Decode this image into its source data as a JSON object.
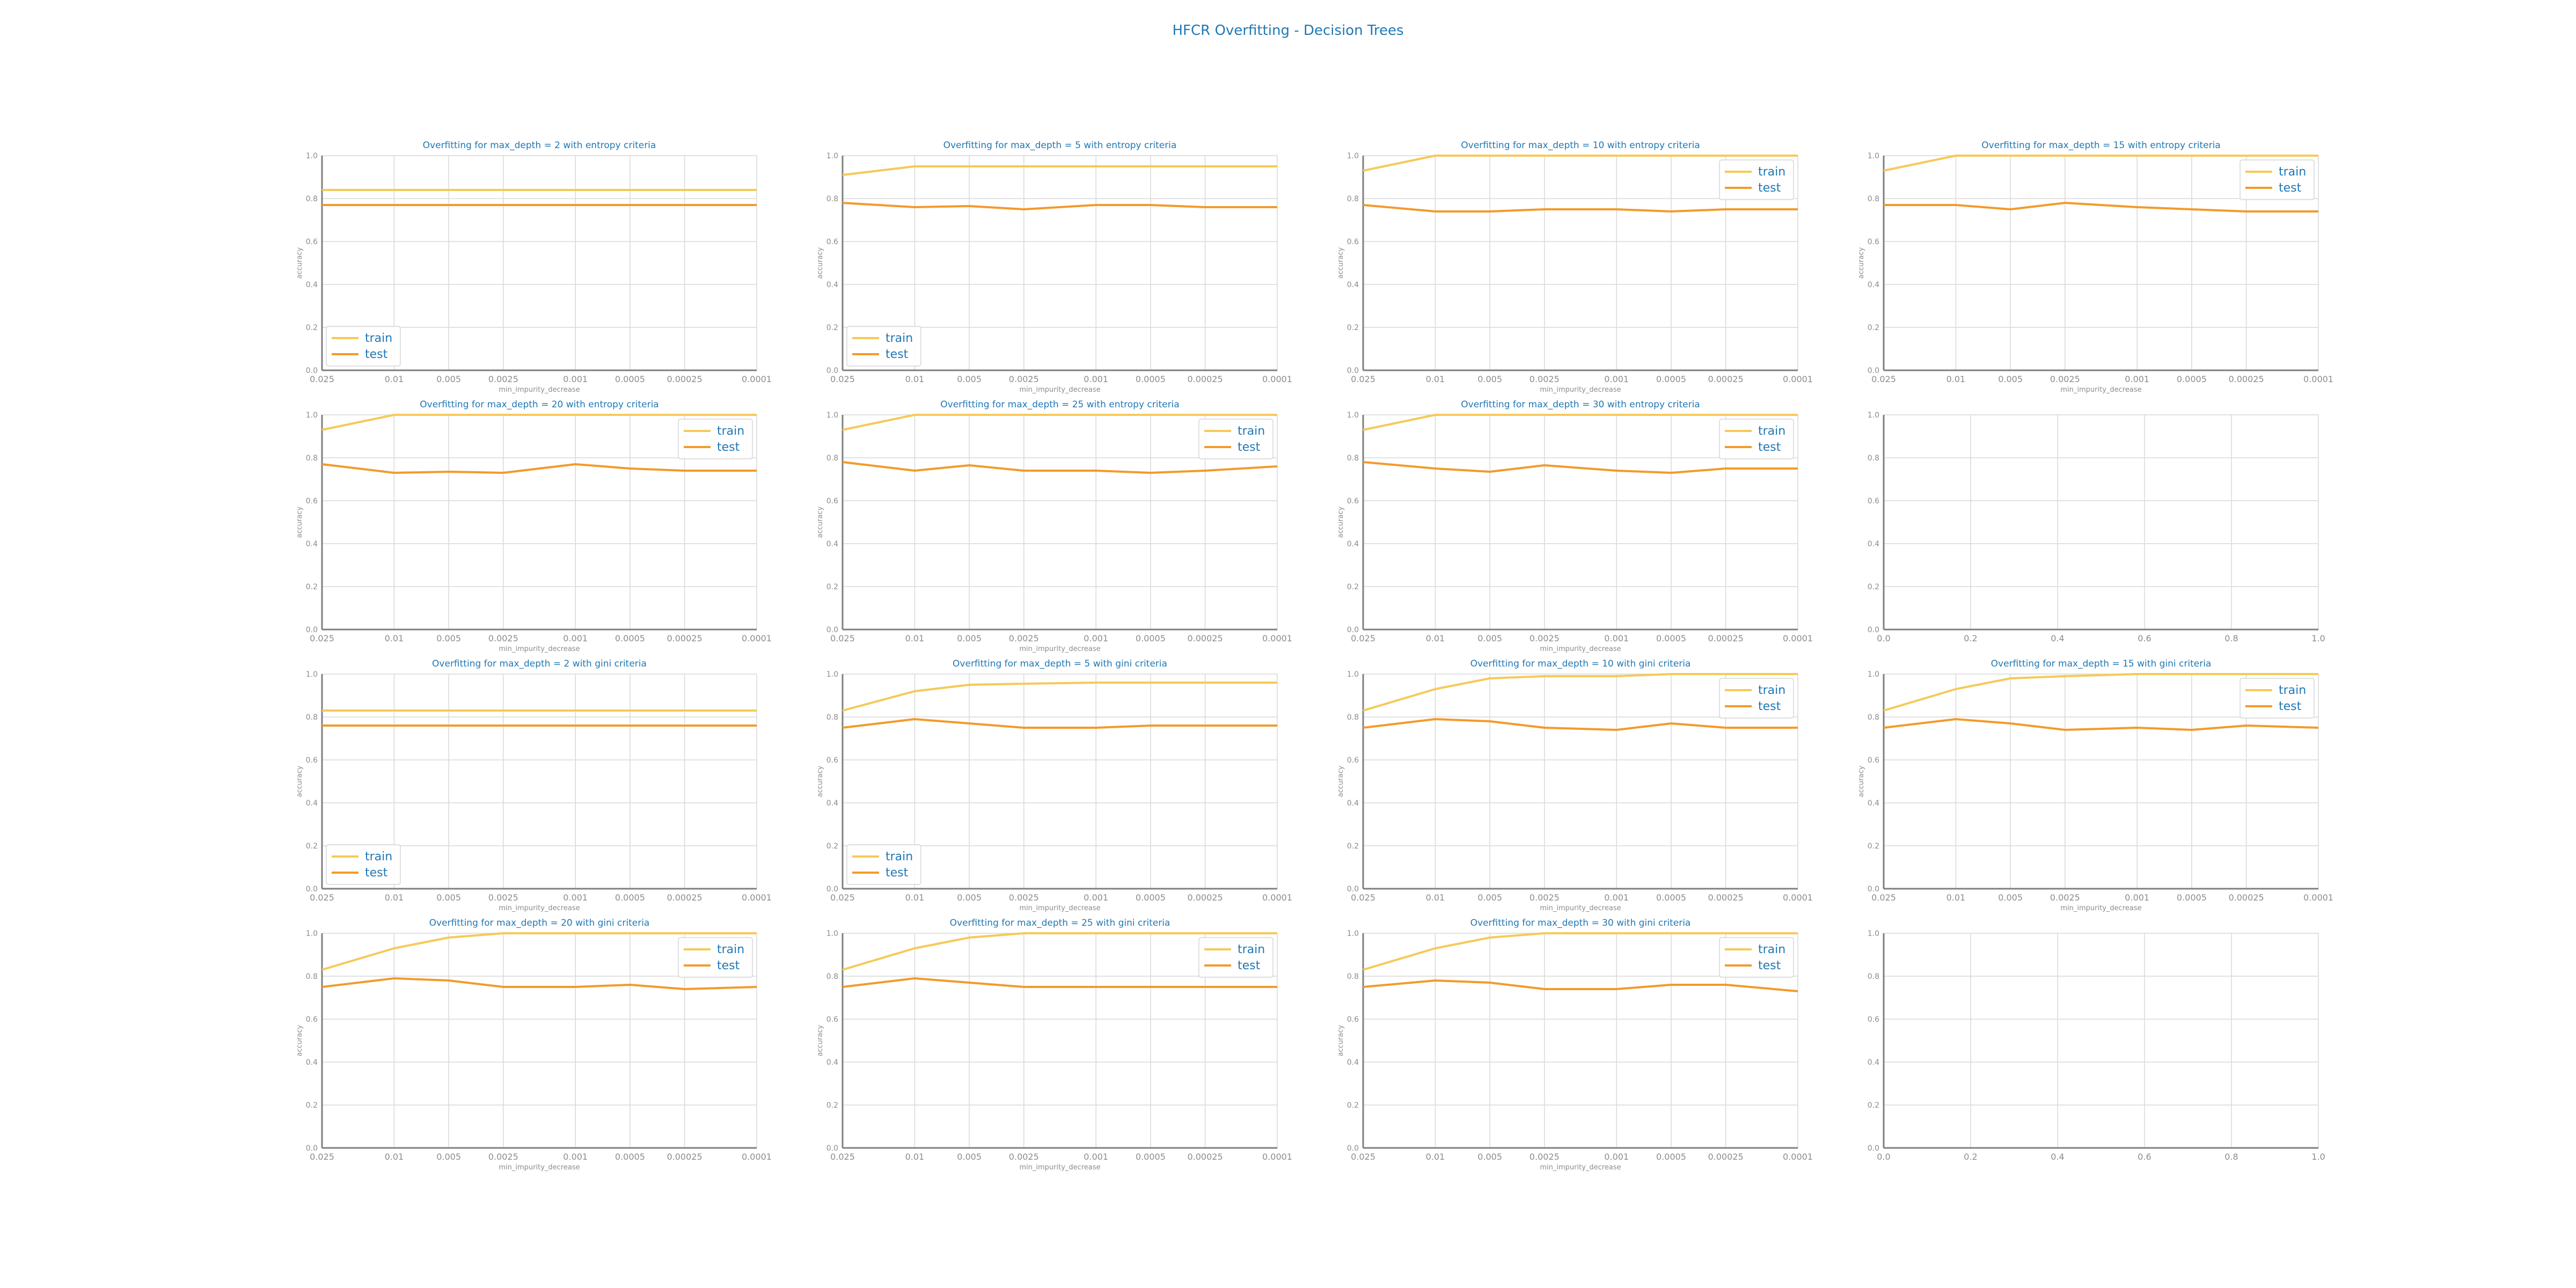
{
  "figure": {
    "title": "HFCR Overfitting - Decision Trees",
    "colors": {
      "train": "#f6c958",
      "test": "#f39a2b",
      "title": "#2078b4",
      "axis_text": "#8c8c8c",
      "grid": "#d9d9d9",
      "spine": "#7f7f7f"
    }
  },
  "chart_data": [
    {
      "type": "line",
      "title": "Overfitting for max_depth = 2 with entropy criteria",
      "xlabel": "min_impurity_decrease",
      "ylabel": "accuracy",
      "x": [
        0.025,
        0.01,
        0.005,
        0.0025,
        0.001,
        0.0005,
        0.00025,
        0.0001
      ],
      "ylim": [
        0,
        1
      ],
      "yticks": [
        "0.0",
        "0.2",
        "0.4",
        "0.6",
        "0.8",
        "1.0"
      ],
      "legend": "lower-left",
      "series": [
        {
          "name": "train",
          "values": [
            0.84,
            0.84,
            0.84,
            0.84,
            0.84,
            0.84,
            0.84,
            0.84
          ]
        },
        {
          "name": "test",
          "values": [
            0.77,
            0.77,
            0.77,
            0.77,
            0.77,
            0.77,
            0.77,
            0.77
          ]
        }
      ]
    },
    {
      "type": "line",
      "title": "Overfitting for max_depth = 5 with entropy criteria",
      "xlabel": "min_impurity_decrease",
      "ylabel": "accuracy",
      "x": [
        0.025,
        0.01,
        0.005,
        0.0025,
        0.001,
        0.0005,
        0.00025,
        0.0001
      ],
      "ylim": [
        0,
        1
      ],
      "yticks": [
        "0.0",
        "0.2",
        "0.4",
        "0.6",
        "0.8",
        "1.0"
      ],
      "legend": "lower-left",
      "series": [
        {
          "name": "train",
          "values": [
            0.91,
            0.95,
            0.95,
            0.95,
            0.95,
            0.95,
            0.95,
            0.95
          ]
        },
        {
          "name": "test",
          "values": [
            0.78,
            0.76,
            0.765,
            0.75,
            0.77,
            0.77,
            0.76,
            0.76
          ]
        }
      ]
    },
    {
      "type": "line",
      "title": "Overfitting for max_depth = 10 with entropy criteria",
      "xlabel": "min_impurity_decrease",
      "ylabel": "accuracy",
      "x": [
        0.025,
        0.01,
        0.005,
        0.0025,
        0.001,
        0.0005,
        0.00025,
        0.0001
      ],
      "ylim": [
        0,
        1
      ],
      "yticks": [
        "0.0",
        "0.2",
        "0.4",
        "0.6",
        "0.8",
        "1.0"
      ],
      "legend": "upper-right",
      "series": [
        {
          "name": "train",
          "values": [
            0.93,
            1.0,
            1.0,
            1.0,
            1.0,
            1.0,
            1.0,
            1.0
          ]
        },
        {
          "name": "test",
          "values": [
            0.77,
            0.74,
            0.74,
            0.75,
            0.75,
            0.74,
            0.75,
            0.75
          ]
        }
      ]
    },
    {
      "type": "line",
      "title": "Overfitting for max_depth = 15 with entropy criteria",
      "xlabel": "min_impurity_decrease",
      "ylabel": "accuracy",
      "x": [
        0.025,
        0.01,
        0.005,
        0.0025,
        0.001,
        0.0005,
        0.00025,
        0.0001
      ],
      "ylim": [
        0,
        1
      ],
      "yticks": [
        "0.0",
        "0.2",
        "0.4",
        "0.6",
        "0.8",
        "1.0"
      ],
      "legend": "upper-right",
      "series": [
        {
          "name": "train",
          "values": [
            0.93,
            1.0,
            1.0,
            1.0,
            1.0,
            1.0,
            1.0,
            1.0
          ]
        },
        {
          "name": "test",
          "values": [
            0.77,
            0.77,
            0.75,
            0.78,
            0.76,
            0.75,
            0.74,
            0.74
          ]
        }
      ]
    },
    {
      "type": "line",
      "title": "Overfitting for max_depth = 20 with entropy criteria",
      "xlabel": "min_impurity_decrease",
      "ylabel": "accuracy",
      "x": [
        0.025,
        0.01,
        0.005,
        0.0025,
        0.001,
        0.0005,
        0.00025,
        0.0001
      ],
      "ylim": [
        0,
        1
      ],
      "yticks": [
        "0.0",
        "0.2",
        "0.4",
        "0.6",
        "0.8",
        "1.0"
      ],
      "legend": "upper-right",
      "series": [
        {
          "name": "train",
          "values": [
            0.93,
            1.0,
            1.0,
            1.0,
            1.0,
            1.0,
            1.0,
            1.0
          ]
        },
        {
          "name": "test",
          "values": [
            0.77,
            0.73,
            0.735,
            0.73,
            0.77,
            0.75,
            0.74,
            0.74
          ]
        }
      ]
    },
    {
      "type": "line",
      "title": "Overfitting for max_depth = 25 with entropy criteria",
      "xlabel": "min_impurity_decrease",
      "ylabel": "accuracy",
      "x": [
        0.025,
        0.01,
        0.005,
        0.0025,
        0.001,
        0.0005,
        0.00025,
        0.0001
      ],
      "ylim": [
        0,
        1
      ],
      "yticks": [
        "0.0",
        "0.2",
        "0.4",
        "0.6",
        "0.8",
        "1.0"
      ],
      "legend": "upper-right",
      "series": [
        {
          "name": "train",
          "values": [
            0.93,
            1.0,
            1.0,
            1.0,
            1.0,
            1.0,
            1.0,
            1.0
          ]
        },
        {
          "name": "test",
          "values": [
            0.78,
            0.74,
            0.765,
            0.74,
            0.74,
            0.73,
            0.74,
            0.76
          ]
        }
      ]
    },
    {
      "type": "line",
      "title": "Overfitting for max_depth = 30 with entropy criteria",
      "xlabel": "min_impurity_decrease",
      "ylabel": "accuracy",
      "x": [
        0.025,
        0.01,
        0.005,
        0.0025,
        0.001,
        0.0005,
        0.00025,
        0.0001
      ],
      "ylim": [
        0,
        1
      ],
      "yticks": [
        "0.0",
        "0.2",
        "0.4",
        "0.6",
        "0.8",
        "1.0"
      ],
      "legend": "upper-right",
      "series": [
        {
          "name": "train",
          "values": [
            0.93,
            1.0,
            1.0,
            1.0,
            1.0,
            1.0,
            1.0,
            1.0
          ]
        },
        {
          "name": "test",
          "values": [
            0.78,
            0.75,
            0.735,
            0.765,
            0.74,
            0.73,
            0.75,
            0.75
          ]
        }
      ]
    },
    {
      "type": "line",
      "title": "",
      "xlabel": "",
      "ylabel": "",
      "x": [],
      "xlim": [
        0,
        1
      ],
      "xticks": [
        "0.0",
        "0.2",
        "0.4",
        "0.6",
        "0.8",
        "1.0"
      ],
      "ylim": [
        0,
        1
      ],
      "yticks": [
        "0.0",
        "0.2",
        "0.4",
        "0.6",
        "0.8",
        "1.0"
      ],
      "series": []
    },
    {
      "type": "line",
      "title": "Overfitting for max_depth = 2 with gini criteria",
      "xlabel": "min_impurity_decrease",
      "ylabel": "accuracy",
      "x": [
        0.025,
        0.01,
        0.005,
        0.0025,
        0.001,
        0.0005,
        0.00025,
        0.0001
      ],
      "ylim": [
        0,
        1
      ],
      "yticks": [
        "0.0",
        "0.2",
        "0.4",
        "0.6",
        "0.8",
        "1.0"
      ],
      "legend": "lower-left",
      "series": [
        {
          "name": "train",
          "values": [
            0.83,
            0.83,
            0.83,
            0.83,
            0.83,
            0.83,
            0.83,
            0.83
          ]
        },
        {
          "name": "test",
          "values": [
            0.76,
            0.76,
            0.76,
            0.76,
            0.76,
            0.76,
            0.76,
            0.76
          ]
        }
      ]
    },
    {
      "type": "line",
      "title": "Overfitting for max_depth = 5 with gini criteria",
      "xlabel": "min_impurity_decrease",
      "ylabel": "accuracy",
      "x": [
        0.025,
        0.01,
        0.005,
        0.0025,
        0.001,
        0.0005,
        0.00025,
        0.0001
      ],
      "ylim": [
        0,
        1
      ],
      "yticks": [
        "0.0",
        "0.2",
        "0.4",
        "0.6",
        "0.8",
        "1.0"
      ],
      "legend": "lower-left",
      "series": [
        {
          "name": "train",
          "values": [
            0.83,
            0.92,
            0.95,
            0.955,
            0.96,
            0.96,
            0.96,
            0.96
          ]
        },
        {
          "name": "test",
          "values": [
            0.75,
            0.79,
            0.77,
            0.75,
            0.75,
            0.76,
            0.76,
            0.76
          ]
        }
      ]
    },
    {
      "type": "line",
      "title": "Overfitting for max_depth = 10 with gini criteria",
      "xlabel": "min_impurity_decrease",
      "ylabel": "accuracy",
      "x": [
        0.025,
        0.01,
        0.005,
        0.0025,
        0.001,
        0.0005,
        0.00025,
        0.0001
      ],
      "ylim": [
        0,
        1
      ],
      "yticks": [
        "0.0",
        "0.2",
        "0.4",
        "0.6",
        "0.8",
        "1.0"
      ],
      "legend": "upper-right",
      "series": [
        {
          "name": "train",
          "values": [
            0.83,
            0.93,
            0.98,
            0.99,
            0.99,
            1.0,
            1.0,
            1.0
          ]
        },
        {
          "name": "test",
          "values": [
            0.75,
            0.79,
            0.78,
            0.75,
            0.74,
            0.77,
            0.75,
            0.75
          ]
        }
      ]
    },
    {
      "type": "line",
      "title": "Overfitting for max_depth = 15 with gini criteria",
      "xlabel": "min_impurity_decrease",
      "ylabel": "accuracy",
      "x": [
        0.025,
        0.01,
        0.005,
        0.0025,
        0.001,
        0.0005,
        0.00025,
        0.0001
      ],
      "ylim": [
        0,
        1
      ],
      "yticks": [
        "0.0",
        "0.2",
        "0.4",
        "0.6",
        "0.8",
        "1.0"
      ],
      "legend": "upper-right",
      "series": [
        {
          "name": "train",
          "values": [
            0.83,
            0.93,
            0.98,
            0.99,
            1.0,
            1.0,
            1.0,
            1.0
          ]
        },
        {
          "name": "test",
          "values": [
            0.75,
            0.79,
            0.77,
            0.74,
            0.75,
            0.74,
            0.76,
            0.75
          ]
        }
      ]
    },
    {
      "type": "line",
      "title": "Overfitting for max_depth = 20 with gini criteria",
      "xlabel": "min_impurity_decrease",
      "ylabel": "accuracy",
      "x": [
        0.025,
        0.01,
        0.005,
        0.0025,
        0.001,
        0.0005,
        0.00025,
        0.0001
      ],
      "ylim": [
        0,
        1
      ],
      "yticks": [
        "0.0",
        "0.2",
        "0.4",
        "0.6",
        "0.8",
        "1.0"
      ],
      "legend": "upper-right",
      "series": [
        {
          "name": "train",
          "values": [
            0.83,
            0.93,
            0.98,
            1.0,
            1.0,
            1.0,
            1.0,
            1.0
          ]
        },
        {
          "name": "test",
          "values": [
            0.75,
            0.79,
            0.78,
            0.75,
            0.75,
            0.76,
            0.74,
            0.75
          ]
        }
      ]
    },
    {
      "type": "line",
      "title": "Overfitting for max_depth = 25 with gini criteria",
      "xlabel": "min_impurity_decrease",
      "ylabel": "accuracy",
      "x": [
        0.025,
        0.01,
        0.005,
        0.0025,
        0.001,
        0.0005,
        0.00025,
        0.0001
      ],
      "ylim": [
        0,
        1
      ],
      "yticks": [
        "0.0",
        "0.2",
        "0.4",
        "0.6",
        "0.8",
        "1.0"
      ],
      "legend": "upper-right",
      "series": [
        {
          "name": "train",
          "values": [
            0.83,
            0.93,
            0.98,
            1.0,
            1.0,
            1.0,
            1.0,
            1.0
          ]
        },
        {
          "name": "test",
          "values": [
            0.75,
            0.79,
            0.77,
            0.75,
            0.75,
            0.75,
            0.75,
            0.75
          ]
        }
      ]
    },
    {
      "type": "line",
      "title": "Overfitting for max_depth = 30 with gini criteria",
      "xlabel": "min_impurity_decrease",
      "ylabel": "accuracy",
      "x": [
        0.025,
        0.01,
        0.005,
        0.0025,
        0.001,
        0.0005,
        0.00025,
        0.0001
      ],
      "ylim": [
        0,
        1
      ],
      "yticks": [
        "0.0",
        "0.2",
        "0.4",
        "0.6",
        "0.8",
        "1.0"
      ],
      "legend": "upper-right",
      "series": [
        {
          "name": "train",
          "values": [
            0.83,
            0.93,
            0.98,
            1.0,
            1.0,
            1.0,
            1.0,
            1.0
          ]
        },
        {
          "name": "test",
          "values": [
            0.75,
            0.78,
            0.77,
            0.74,
            0.74,
            0.76,
            0.76,
            0.73
          ]
        }
      ]
    },
    {
      "type": "line",
      "title": "",
      "xlabel": "",
      "ylabel": "",
      "x": [],
      "xlim": [
        0,
        1
      ],
      "xticks": [
        "0.0",
        "0.2",
        "0.4",
        "0.6",
        "0.8",
        "1.0"
      ],
      "ylim": [
        0,
        1
      ],
      "yticks": [
        "0.0",
        "0.2",
        "0.4",
        "0.6",
        "0.8",
        "1.0"
      ],
      "series": []
    }
  ]
}
